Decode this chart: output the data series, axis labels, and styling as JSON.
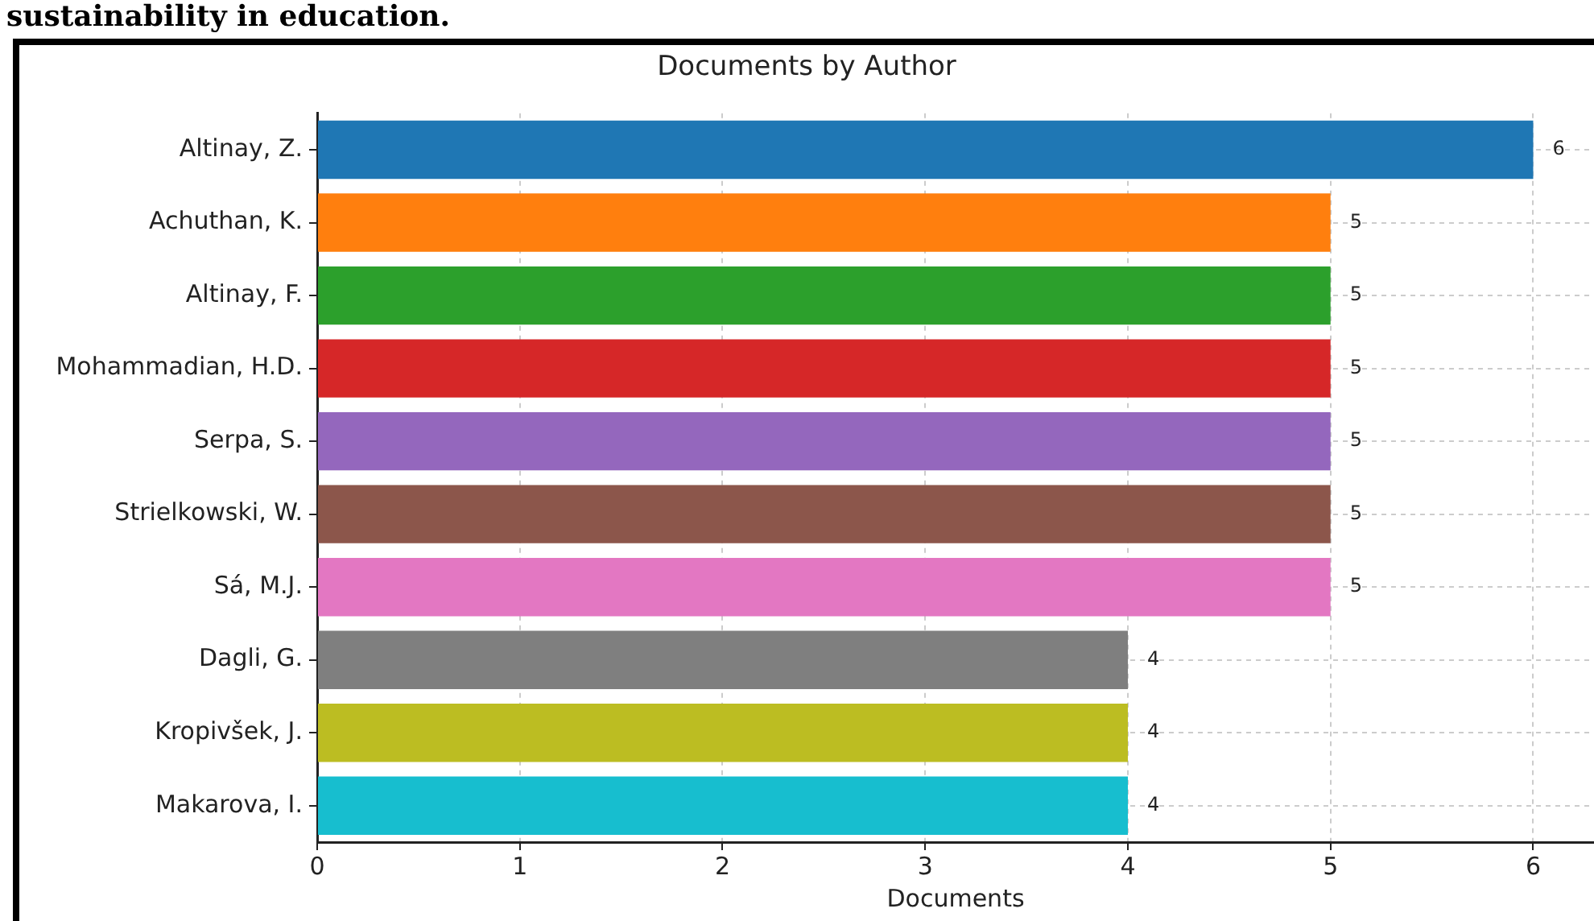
{
  "chart_data": {
    "type": "bar",
    "orientation": "horizontal",
    "title": "Documents by Author",
    "xlabel": "Documents",
    "annotations": [
      "sustainability in education."
    ],
    "categories": [
      "Altinay, Z.",
      "Achuthan, K.",
      "Altinay, F.",
      "Mohammadian, H.D.",
      "Serpa, S.",
      "Strielkowski, W.",
      "Sá, M.J.",
      "Dagli, G.",
      "Kropivšek, J.",
      "Makarova, I."
    ],
    "values": [
      6,
      5,
      5,
      5,
      5,
      5,
      5,
      4,
      4,
      4
    ],
    "colors": [
      "#1f77b4",
      "#ff7f0e",
      "#2ca02c",
      "#d62728",
      "#9467bd",
      "#8c564b",
      "#e377c2",
      "#7f7f7f",
      "#bcbd22",
      "#17becf"
    ],
    "xlim": [
      0,
      6.3
    ],
    "xticks": [
      0,
      1,
      2,
      3,
      4,
      5,
      6
    ],
    "grid": true,
    "data_labels": true
  }
}
